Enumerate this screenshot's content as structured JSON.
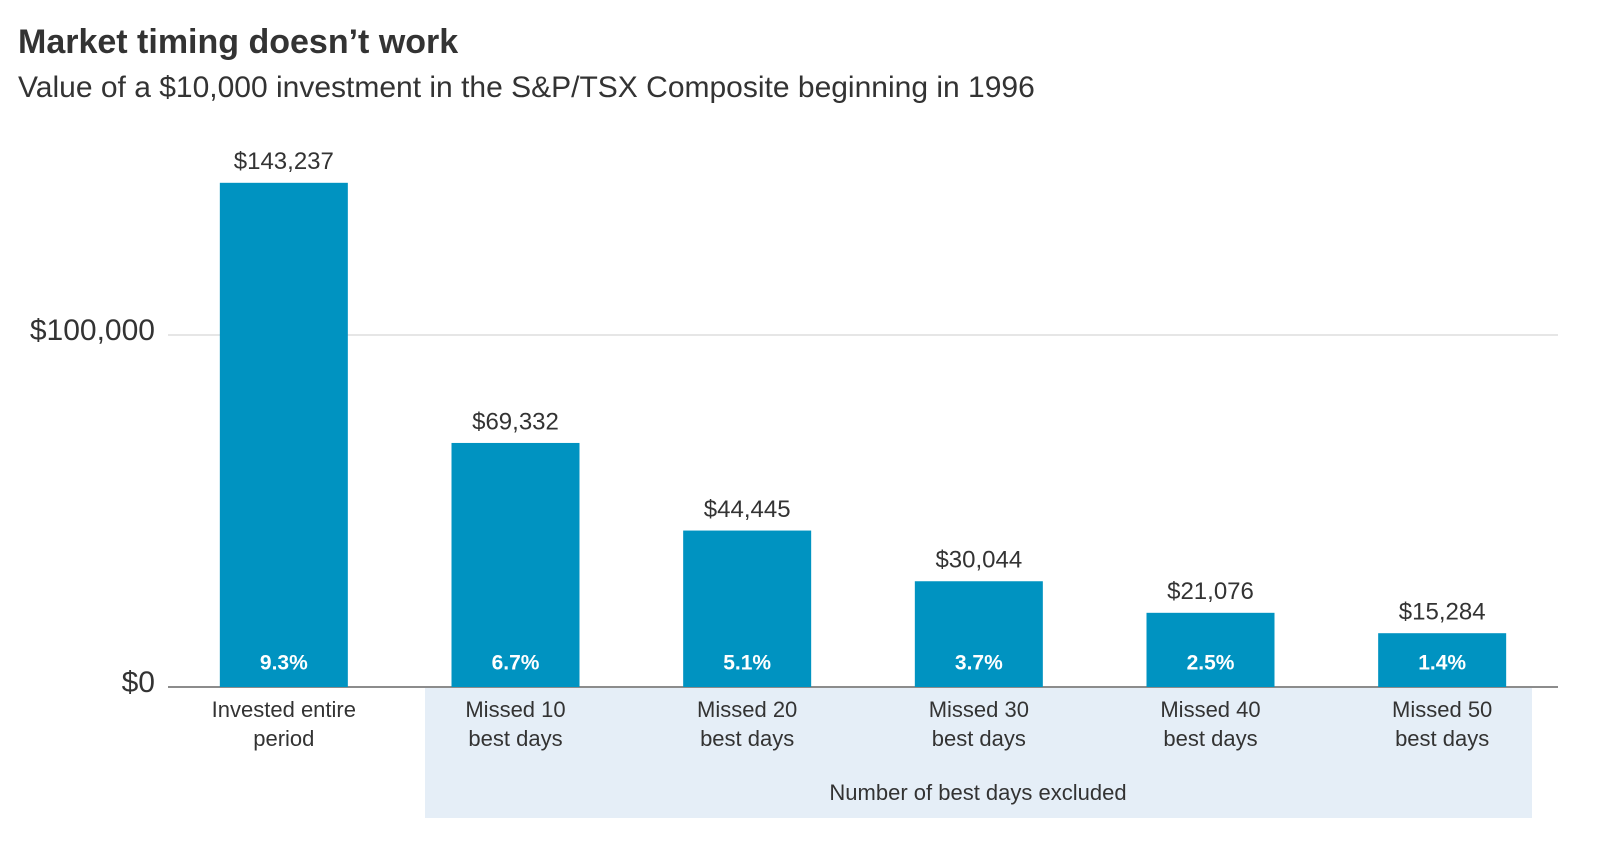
{
  "chart_data": {
    "type": "bar",
    "title": "Market timing doesn’t work",
    "subtitle": "Value of a $10,000 investment in the S&P/TSX Composite beginning in 1996",
    "categories": [
      "Invested entire period",
      "Missed 10 best days",
      "Missed 20 best days",
      "Missed 30 best days",
      "Missed 40 best days",
      "Missed 50 best days"
    ],
    "values": [
      143237,
      69332,
      44445,
      30044,
      21076,
      15284
    ],
    "value_labels": [
      "$143,237",
      "$69,332",
      "$44,445",
      "$30,044",
      "$21,076",
      "$15,284"
    ],
    "return_labels": [
      "9.3%",
      "6.7%",
      "5.1%",
      "3.7%",
      "2.5%",
      "1.4%"
    ],
    "group_label": "Number of best days excluded",
    "color": "#0093c1",
    "ylim": [
      0,
      150000
    ],
    "yticks": [
      {
        "value": 0,
        "label": "$0"
      },
      {
        "value": 100000,
        "label": "$100,000"
      }
    ],
    "grid": true
  }
}
